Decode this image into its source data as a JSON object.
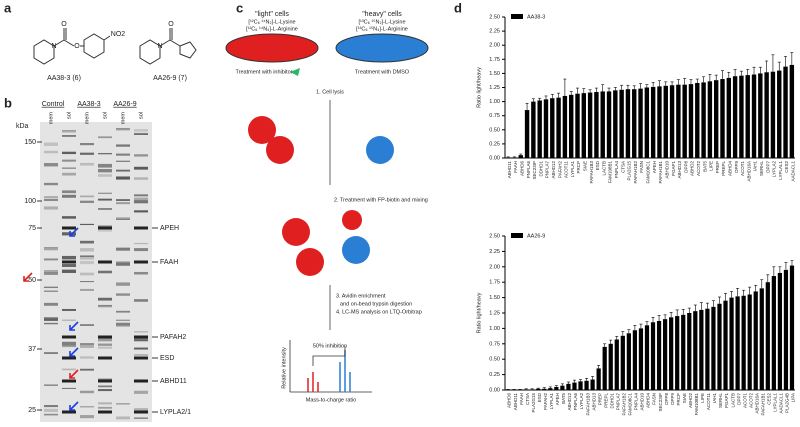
{
  "panel_labels": [
    "a",
    "b",
    "c",
    "d"
  ],
  "panel_a": {
    "compound_1": "AA38-3 (6)",
    "compound_2": "AA26-9 (7)",
    "nitro": "NO2"
  },
  "panel_b": {
    "unit": "kDa",
    "markers": [
      "150",
      "100",
      "75",
      "50",
      "37",
      "25"
    ],
    "groups": [
      "Control",
      "AA38-3",
      "AA26-9"
    ],
    "lanes": [
      "mem",
      "sol",
      "mem",
      "sol",
      "mem",
      "sol"
    ],
    "proteins": [
      "APEH",
      "FAAH",
      "PAFAH2",
      "ESD",
      "ABHD11",
      "LYPLA2/1"
    ]
  },
  "panel_c": {
    "light_title": "\"light\" cells",
    "heavy_title": "\"heavy\" cells",
    "light_lys": "[¹²C₆ ¹⁴N₂]-L-Lysine",
    "light_arg": "[¹²C₆ ¹⁴N₄]-L-Arginine",
    "heavy_lys": "[¹³C₆ ¹⁵N₂]-L-Lysine",
    "heavy_arg": "[¹³C₆ ¹⁵N₄]-L-Arginine",
    "treat_light": "Treatment with inhibitor",
    "treat_heavy": "Treatment with DMSO",
    "step1": "1. Cell lysis",
    "step2": "2. Treatment with FP-biotin and mixing",
    "step3a": "3. Avidin enrichment",
    "step3b": "and on-bead trypsin digestion",
    "step4": "4. LC-MS analysis on LTQ-Orbitrap",
    "inhibition": "50% inhibition",
    "y_label": "Relative intensity",
    "x_label": "Mass-to-charge ratio"
  },
  "chart_data": [
    {
      "type": "bar",
      "y_label": "Ratio light/heavy",
      "legend": "upper left",
      "categories": [
        "ABHD11",
        "FAAH",
        "ABHD6",
        "PNPLA6",
        "SEC23IP",
        "DDHD1",
        "PNPLA7",
        "ABHD12",
        "PAFAH2",
        "ACOT11",
        "LYPLA1",
        "PRCP",
        "SIAE",
        "PAFAH1B3",
        "ESD",
        "LACTB",
        "FAM108B1",
        "PNPLA4",
        "CTSA",
        "PLA2G15",
        "PAFAH1B2",
        "FASN",
        "FAM108C1",
        "APEH",
        "PAFAH1B1",
        "ABHD10",
        "PGAP1",
        "ABHD13",
        "DPP8",
        "ABHD2",
        "ACOT2",
        "BAT5",
        "LIPE",
        "PREP",
        "PREPL",
        "ABHD4",
        "DPP9",
        "ACOT1",
        "ABHD16A",
        "IAH1",
        "SERHL",
        "DPP7",
        "LYPLA2",
        "LYPLAL1",
        "CES2",
        "AADACL1"
      ],
      "series": [
        {
          "name": "AA38-3",
          "color": "#000000",
          "values": [
            0.01,
            0.01,
            0.05,
            0.85,
            1.0,
            1.02,
            1.04,
            1.06,
            1.07,
            1.1,
            1.12,
            1.14,
            1.15,
            1.16,
            1.17,
            1.18,
            1.18,
            1.2,
            1.21,
            1.22,
            1.22,
            1.23,
            1.25,
            1.26,
            1.27,
            1.28,
            1.29,
            1.3,
            1.3,
            1.31,
            1.33,
            1.34,
            1.36,
            1.38,
            1.4,
            1.42,
            1.45,
            1.46,
            1.47,
            1.48,
            1.5,
            1.52,
            1.53,
            1.55,
            1.62,
            1.65
          ],
          "errors": [
            0.01,
            0.01,
            0.02,
            0.12,
            0.05,
            0.04,
            0.06,
            0.07,
            0.08,
            0.3,
            0.06,
            0.1,
            0.08,
            0.05,
            0.07,
            0.12,
            0.06,
            0.05,
            0.08,
            0.07,
            0.06,
            0.09,
            0.05,
            0.08,
            0.1,
            0.07,
            0.06,
            0.09,
            0.11,
            0.08,
            0.07,
            0.1,
            0.12,
            0.09,
            0.15,
            0.1,
            0.12,
            0.08,
            0.1,
            0.13,
            0.11,
            0.2,
            0.3,
            0.15,
            0.18,
            0.22
          ]
        }
      ],
      "ylim": [
        0,
        2.5
      ],
      "yticks": [
        {
          "value": 0,
          "label": "0.00"
        },
        {
          "value": 0.25,
          "label": "0.25"
        },
        {
          "value": 0.5,
          "label": "0.50"
        },
        {
          "value": 0.75,
          "label": "0.75"
        },
        {
          "value": 1,
          "label": "1.00"
        },
        {
          "value": 1.25,
          "label": "1.25"
        },
        {
          "value": 1.5,
          "label": "1.50"
        },
        {
          "value": 1.75,
          "label": "1.75"
        },
        {
          "value": 2,
          "label": "2.00"
        },
        {
          "value": 2.25,
          "label": "2.25"
        },
        {
          "value": 2.5,
          "label": "2.50"
        }
      ]
    },
    {
      "type": "bar",
      "y_label": "Ratio light/heavy",
      "legend": "upper left",
      "categories": [
        "ABHD6",
        "ABHD11",
        "FAAH",
        "CTSA",
        "PLA2G15",
        "ESD",
        "PAFAH2",
        "LYPLA1",
        "APEH",
        "BAT5",
        "ABHD12",
        "PNPLA6",
        "LYPLA2",
        "PAFAH1B3",
        "ABHD13",
        "PREP",
        "PREPL",
        "DDHD1",
        "PNPLA7",
        "PAFAH1B2",
        "FAM108C1",
        "PNPLA4",
        "ABHD10",
        "ABHD4",
        "FASN",
        "SEC23IP",
        "DPP8",
        "DPP9",
        "PRCP",
        "SIAE",
        "ABHD2",
        "FAM108B1",
        "LIPE",
        "ACOT11",
        "IAH1",
        "SERHL",
        "PGAP1",
        "LACTB",
        "DPP7",
        "ACOT1",
        "ACOT2",
        "ABHD16A",
        "PAFAH1B1",
        "CES2",
        "LYPLAL1",
        "AADACL1",
        "PLA2G4B",
        "LIPA"
      ],
      "series": [
        {
          "name": "AA26-9",
          "color": "#000000",
          "values": [
            0.0,
            0.0,
            0.0,
            0.01,
            0.01,
            0.02,
            0.02,
            0.03,
            0.05,
            0.07,
            0.1,
            0.12,
            0.14,
            0.15,
            0.17,
            0.35,
            0.7,
            0.75,
            0.82,
            0.88,
            0.92,
            0.97,
            1.0,
            1.05,
            1.1,
            1.12,
            1.15,
            1.18,
            1.2,
            1.22,
            1.25,
            1.28,
            1.3,
            1.32,
            1.35,
            1.4,
            1.45,
            1.5,
            1.52,
            1.53,
            1.55,
            1.6,
            1.65,
            1.75,
            1.85,
            1.9,
            1.95,
            2.02
          ],
          "errors": [
            0.01,
            0.01,
            0.01,
            0.01,
            0.01,
            0.01,
            0.02,
            0.02,
            0.02,
            0.03,
            0.03,
            0.04,
            0.03,
            0.04,
            0.05,
            0.05,
            0.05,
            0.06,
            0.05,
            0.07,
            0.06,
            0.08,
            0.07,
            0.06,
            0.08,
            0.09,
            0.07,
            0.08,
            0.1,
            0.09,
            0.08,
            0.1,
            0.12,
            0.09,
            0.1,
            0.11,
            0.12,
            0.1,
            0.13,
            0.09,
            0.12,
            0.1,
            0.14,
            0.12,
            0.15,
            0.1,
            0.12,
            0.08
          ]
        }
      ],
      "ylim": [
        0,
        2.5
      ],
      "yticks": [
        {
          "value": 0,
          "label": "0.00"
        },
        {
          "value": 0.25,
          "label": "0.25"
        },
        {
          "value": 0.5,
          "label": "0.50"
        },
        {
          "value": 0.75,
          "label": "0.75"
        },
        {
          "value": 1,
          "label": "1.00"
        },
        {
          "value": 1.25,
          "label": "1.25"
        },
        {
          "value": 1.5,
          "label": "1.50"
        },
        {
          "value": 1.75,
          "label": "1.75"
        },
        {
          "value": 2,
          "label": "2.00"
        },
        {
          "value": 2.25,
          "label": "2.25"
        },
        {
          "value": 2.5,
          "label": "2.50"
        }
      ]
    }
  ]
}
